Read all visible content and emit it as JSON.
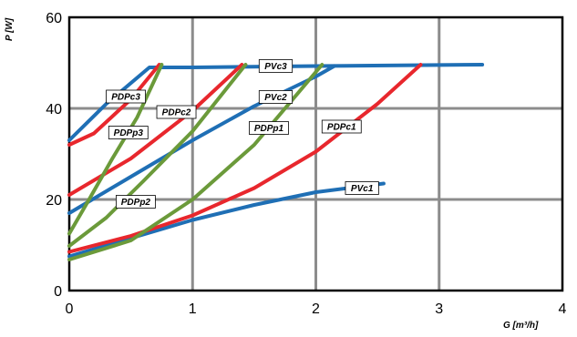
{
  "chart_data": {
    "type": "line",
    "xlabel": "G [m³/h]",
    "ylabel": "P [W]",
    "xlim": [
      0,
      4
    ],
    "ylim": [
      0,
      60
    ],
    "xticks": [
      "0",
      "1",
      "2",
      "3",
      "4"
    ],
    "yticks": [
      "0",
      "20",
      "40",
      "60"
    ],
    "grid": true,
    "colors": {
      "Vc": "#1f6fb5",
      "Pc": "#e8272d",
      "Pp": "#6b9a3a",
      "grid": "#8c8c8c"
    },
    "series": [
      {
        "name": "PVc1",
        "color": "#1f6fb5",
        "x": [
          0,
          0.5,
          1.0,
          1.5,
          2.0,
          2.55
        ],
        "y": [
          7.5,
          11.5,
          15.5,
          18.8,
          21.6,
          23.5
        ]
      },
      {
        "name": "PVc2",
        "color": "#1f6fb5",
        "x": [
          0,
          0.5,
          1.0,
          1.5,
          2.0,
          2.15
        ],
        "y": [
          17,
          25,
          33,
          40.5,
          47,
          49.3
        ]
      },
      {
        "name": "PVc3",
        "color": "#1f6fb5",
        "x": [
          0,
          0.3,
          0.65,
          1.0,
          2.0,
          3.35
        ],
        "y": [
          33,
          41,
          49,
          49,
          49.3,
          49.6
        ]
      },
      {
        "name": "PDPc1",
        "color": "#e8272d",
        "x": [
          0,
          0.5,
          1.0,
          1.5,
          2.0,
          2.5,
          2.85
        ],
        "y": [
          8.5,
          12,
          16.5,
          22.5,
          30.5,
          41,
          49.6
        ]
      },
      {
        "name": "PDPc2",
        "color": "#e8272d",
        "x": [
          0,
          0.5,
          1.0,
          1.4
        ],
        "y": [
          21,
          29,
          39.5,
          49.6
        ]
      },
      {
        "name": "PDPc3",
        "color": "#e8272d",
        "x": [
          0,
          0.2,
          0.5,
          0.73
        ],
        "y": [
          32,
          34.5,
          42,
          49.6
        ]
      },
      {
        "name": "PDPp1",
        "color": "#6b9a3a",
        "x": [
          0,
          0.5,
          1.0,
          1.5,
          2.05
        ],
        "y": [
          6.8,
          11,
          20,
          32,
          49.6
        ]
      },
      {
        "name": "PDPp2",
        "color": "#6b9a3a",
        "x": [
          0,
          0.3,
          0.6,
          1.0,
          1.43
        ],
        "y": [
          9.8,
          16,
          24,
          35,
          49.6
        ]
      },
      {
        "name": "PDPp3",
        "color": "#6b9a3a",
        "x": [
          0,
          0.15,
          0.35,
          0.55,
          0.75
        ],
        "y": [
          12.5,
          19.5,
          29,
          38,
          49.6
        ]
      }
    ],
    "annotations": [
      {
        "text": "PVc1",
        "x": 2.24,
        "y": 22.5
      },
      {
        "text": "PVc2",
        "x": 1.54,
        "y": 42.5
      },
      {
        "text": "PVc3",
        "x": 1.54,
        "y": 49.3
      },
      {
        "text": "PDPc1",
        "x": 2.05,
        "y": 36
      },
      {
        "text": "PDPc2",
        "x": 0.71,
        "y": 39.2
      },
      {
        "text": "PDPc3",
        "x": 0.3,
        "y": 42.6
      },
      {
        "text": "PDPp1",
        "x": 1.46,
        "y": 35.7
      },
      {
        "text": "PDPp2",
        "x": 0.38,
        "y": 19.5
      },
      {
        "text": "PDPp3",
        "x": 0.32,
        "y": 34.7
      }
    ]
  }
}
